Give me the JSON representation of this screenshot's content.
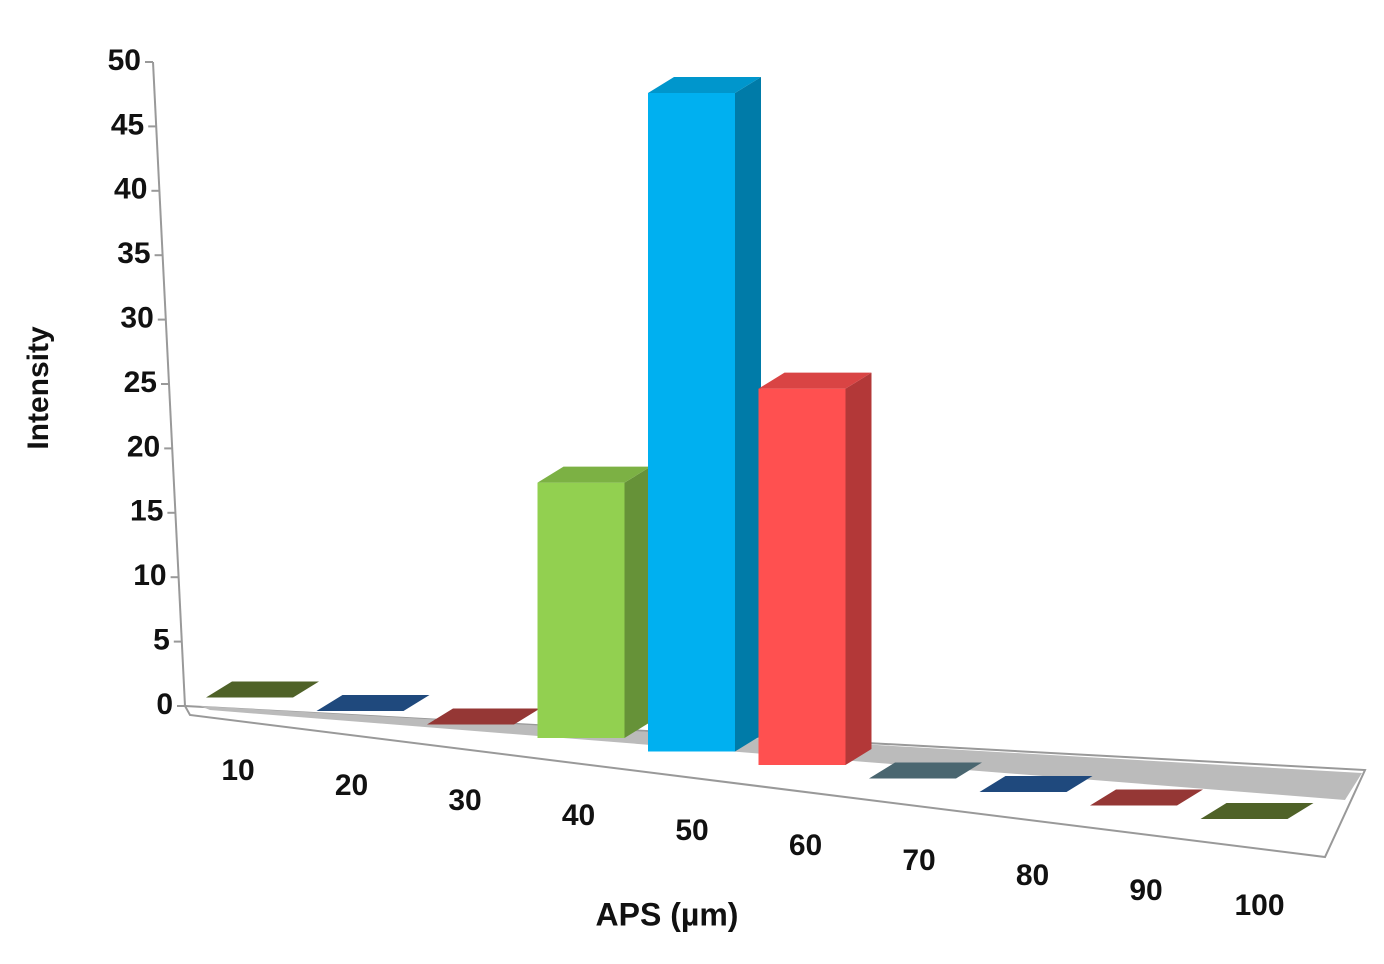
{
  "chart_data": {
    "type": "bar3d",
    "x_label": "APS (µm)",
    "y_label": "Intensity",
    "categories": [
      "10",
      "20",
      "30",
      "40",
      "50",
      "60",
      "70",
      "80",
      "90",
      "100"
    ],
    "values": [
      0,
      0,
      0,
      19,
      49,
      28,
      0,
      0,
      0,
      0
    ],
    "colors": [
      "#4f6228",
      "#1f497d",
      "#953735",
      "#92d050",
      "#00b0f0",
      "#ff5050",
      "#4a6670",
      "#1f497d",
      "#953735",
      "#4f6228"
    ],
    "ylim": [
      0,
      50
    ],
    "yticks": [
      0,
      5,
      10,
      15,
      20,
      25,
      30,
      35,
      40,
      45,
      50
    ]
  }
}
